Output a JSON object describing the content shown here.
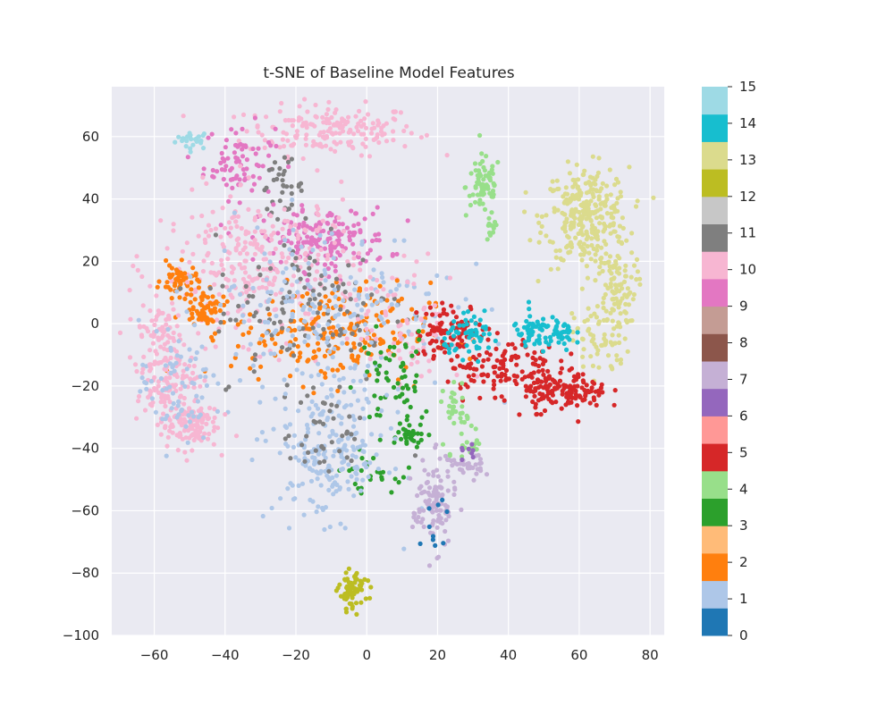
{
  "chart_data": {
    "type": "scatter",
    "title": "t-SNE of Baseline Model Features",
    "xlabel": "",
    "ylabel": "",
    "xlim": [
      -72,
      84
    ],
    "ylim": [
      -100,
      76
    ],
    "xticks": [
      -60,
      -40,
      -20,
      0,
      20,
      40,
      60,
      80
    ],
    "yticks": [
      -100,
      -80,
      -60,
      -40,
      -20,
      0,
      20,
      40,
      60
    ],
    "grid": true,
    "background": "#eaeaf2",
    "colorbar": {
      "ticks": [
        0,
        1,
        2,
        3,
        4,
        5,
        6,
        7,
        8,
        9,
        10,
        11,
        12,
        13,
        14,
        15
      ],
      "colors": [
        "#1f77b4",
        "#aec7e8",
        "#ff7f0e",
        "#ffbb78",
        "#2ca02c",
        "#98df8a",
        "#d62728",
        "#ff9896",
        "#9467bd",
        "#c5b0d5",
        "#8c564b",
        "#c49c94",
        "#e377c2",
        "#f7b6d2",
        "#7f7f7f",
        "#c7c7c7",
        "#bcbd22",
        "#dbdb8d",
        "#17becf",
        "#9edae5"
      ]
    },
    "clusters": [
      {
        "label": 15,
        "color": "#9edae5",
        "center": [
          -49,
          59
        ],
        "spread": [
          2.5,
          1.5
        ],
        "count": 25
      },
      {
        "label": 10,
        "color": "#f7b6d2",
        "center": [
          -10,
          62
        ],
        "spread": [
          12,
          4
        ],
        "count": 180
      },
      {
        "label": 9,
        "color": "#e377c2",
        "center": [
          -36,
          52
        ],
        "spread": [
          5,
          6
        ],
        "count": 80
      },
      {
        "label": 11,
        "color": "#7f7f7f",
        "center": [
          -24,
          44
        ],
        "spread": [
          3,
          4
        ],
        "count": 35
      },
      {
        "label": 4,
        "color": "#98df8a",
        "center": [
          33,
          44
        ],
        "spread": [
          2.5,
          5
        ],
        "count": 70
      },
      {
        "label": 4,
        "color": "#98df8a",
        "center": [
          35,
          30
        ],
        "spread": [
          1,
          2
        ],
        "count": 12
      },
      {
        "label": 13,
        "color": "#dbdb8d",
        "center": [
          62,
          34
        ],
        "spread": [
          6,
          8
        ],
        "count": 300
      },
      {
        "label": 13,
        "color": "#dbdb8d",
        "center": [
          70,
          12
        ],
        "spread": [
          3,
          6
        ],
        "count": 90
      },
      {
        "label": 13,
        "color": "#dbdb8d",
        "center": [
          66,
          -5
        ],
        "spread": [
          4,
          6
        ],
        "count": 70
      },
      {
        "label": 9,
        "color": "#e377c2",
        "center": [
          -12,
          27
        ],
        "spread": [
          9,
          5
        ],
        "count": 170
      },
      {
        "label": 10,
        "color": "#f7b6d2",
        "center": [
          -30,
          18
        ],
        "spread": [
          14,
          12
        ],
        "count": 300
      },
      {
        "label": 2,
        "color": "#ff7f0e",
        "center": [
          -53,
          14
        ],
        "spread": [
          2.5,
          2.5
        ],
        "count": 50
      },
      {
        "label": 2,
        "color": "#ff7f0e",
        "center": [
          -46,
          5
        ],
        "spread": [
          3,
          2.5
        ],
        "count": 60
      },
      {
        "label": 2,
        "color": "#ff7f0e",
        "center": [
          -10,
          -3
        ],
        "spread": [
          14,
          8
        ],
        "count": 220
      },
      {
        "label": 11,
        "color": "#7f7f7f",
        "center": [
          -16,
          5
        ],
        "spread": [
          14,
          12
        ],
        "count": 120
      },
      {
        "label": 1,
        "color": "#aec7e8",
        "center": [
          -12,
          5
        ],
        "spread": [
          18,
          14
        ],
        "count": 200
      },
      {
        "label": 10,
        "color": "#f7b6d2",
        "center": [
          -57,
          -14
        ],
        "spread": [
          4,
          10
        ],
        "count": 180
      },
      {
        "label": 10,
        "color": "#f7b6d2",
        "center": [
          -50,
          -32
        ],
        "spread": [
          4,
          4
        ],
        "count": 120
      },
      {
        "label": 1,
        "color": "#aec7e8",
        "center": [
          -54,
          -20
        ],
        "spread": [
          5,
          10
        ],
        "count": 70
      },
      {
        "label": 10,
        "color": "#f7b6d2",
        "center": [
          12,
          0
        ],
        "spread": [
          8,
          10
        ],
        "count": 80
      },
      {
        "label": 5,
        "color": "#d62728",
        "center": [
          24,
          -2
        ],
        "spread": [
          5,
          4
        ],
        "count": 90
      },
      {
        "label": 5,
        "color": "#d62728",
        "center": [
          38,
          -14
        ],
        "spread": [
          8,
          5
        ],
        "count": 130
      },
      {
        "label": 5,
        "color": "#d62728",
        "center": [
          56,
          -22
        ],
        "spread": [
          6,
          3
        ],
        "count": 130
      },
      {
        "label": 14,
        "color": "#17becf",
        "center": [
          30,
          -4
        ],
        "spread": [
          4,
          3
        ],
        "count": 60
      },
      {
        "label": 14,
        "color": "#17becf",
        "center": [
          47,
          -3
        ],
        "spread": [
          3,
          3
        ],
        "count": 50
      },
      {
        "label": 14,
        "color": "#17becf",
        "center": [
          55,
          -4
        ],
        "spread": [
          2,
          3
        ],
        "count": 35
      },
      {
        "label": 3,
        "color": "#2ca02c",
        "center": [
          8,
          -18
        ],
        "spread": [
          5,
          8
        ],
        "count": 60
      },
      {
        "label": 3,
        "color": "#2ca02c",
        "center": [
          12,
          -35
        ],
        "spread": [
          3,
          2
        ],
        "count": 30
      },
      {
        "label": 3,
        "color": "#2ca02c",
        "center": [
          0,
          -48
        ],
        "spread": [
          4,
          3
        ],
        "count": 25
      },
      {
        "label": 1,
        "color": "#aec7e8",
        "center": [
          -10,
          -42
        ],
        "spread": [
          8,
          10
        ],
        "count": 220
      },
      {
        "label": 11,
        "color": "#7f7f7f",
        "center": [
          -12,
          -35
        ],
        "spread": [
          6,
          8
        ],
        "count": 40
      },
      {
        "label": 4,
        "color": "#98df8a",
        "center": [
          26,
          -28
        ],
        "spread": [
          2,
          4
        ],
        "count": 35
      },
      {
        "label": 4,
        "color": "#98df8a",
        "center": [
          29,
          -40
        ],
        "spread": [
          2,
          2
        ],
        "count": 15
      },
      {
        "label": 7,
        "color": "#c5b0d5",
        "center": [
          19,
          -58
        ],
        "spread": [
          3,
          7
        ],
        "count": 110
      },
      {
        "label": 7,
        "color": "#c5b0d5",
        "center": [
          27,
          -46
        ],
        "spread": [
          3,
          2
        ],
        "count": 35
      },
      {
        "label": 0,
        "color": "#1f77b4",
        "center": [
          19,
          -60
        ],
        "spread": [
          2,
          6
        ],
        "count": 10
      },
      {
        "label": 12,
        "color": "#bcbd22",
        "center": [
          -4,
          -86
        ],
        "spread": [
          2,
          3
        ],
        "count": 70
      },
      {
        "label": 6,
        "color": "#9467bd",
        "center": [
          29,
          -42
        ],
        "spread": [
          1,
          1.5
        ],
        "count": 8
      }
    ]
  }
}
